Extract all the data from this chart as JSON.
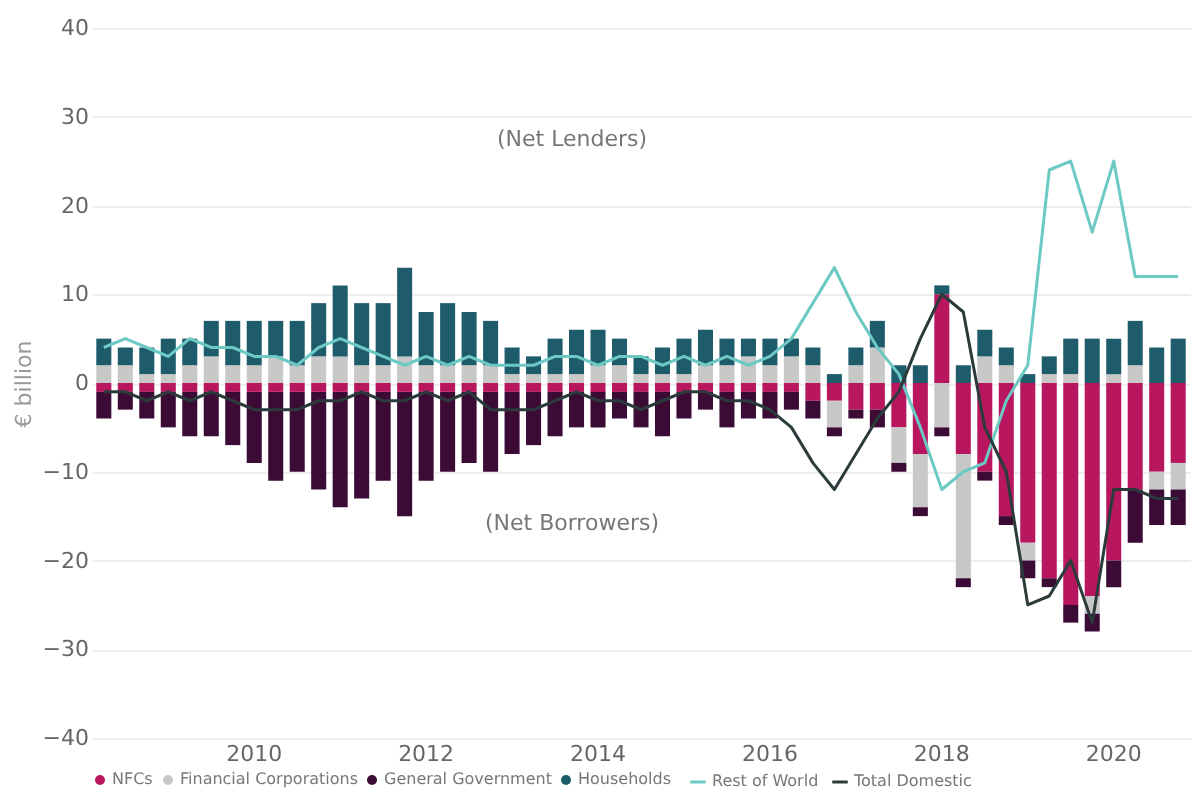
{
  "chart_data": {
    "type": "bar",
    "stacked": true,
    "ylabel": "€ billion",
    "categories": [
      null,
      null,
      null,
      null,
      null,
      null,
      null,
      "2010",
      null,
      null,
      null,
      null,
      null,
      null,
      null,
      "2012",
      null,
      null,
      null,
      null,
      null,
      null,
      null,
      "2014",
      null,
      null,
      null,
      null,
      null,
      null,
      null,
      "2016",
      null,
      null,
      null,
      null,
      null,
      null,
      null,
      "2018",
      null,
      null,
      null,
      null,
      null,
      null,
      null,
      "2020",
      null,
      null,
      null
    ],
    "series": [
      {
        "name": "NFCs",
        "color": "#b8175f",
        "values": [
          -1,
          -1,
          -1,
          -1,
          -1,
          -1,
          -1,
          -1,
          -1,
          -1,
          -1,
          -1,
          -1,
          -1,
          -1,
          -1,
          -1,
          -1,
          -1,
          -1,
          -1,
          -1,
          -1,
          -1,
          -1,
          -1,
          -1,
          -1,
          -1,
          -1,
          -1,
          -1,
          -1,
          -2,
          -2,
          -3,
          -3,
          -5,
          -8,
          10,
          -8,
          -10,
          -15,
          -18,
          -22,
          -25,
          -24,
          -20,
          -12,
          -10,
          -9
        ]
      },
      {
        "name": "Financial Corporations",
        "color": "#c8c8c8",
        "values": [
          2,
          2,
          1,
          1,
          2,
          3,
          2,
          2,
          3,
          2,
          3,
          3,
          2,
          2,
          3,
          2,
          2,
          2,
          2,
          1,
          1,
          1,
          1,
          2,
          2,
          1,
          1,
          1,
          2,
          2,
          3,
          2,
          3,
          2,
          -3,
          2,
          4,
          -4,
          -6,
          -5,
          -14,
          3,
          2,
          -2,
          1,
          1,
          -2,
          1,
          2,
          -2,
          -3
        ]
      },
      {
        "name": "General Government",
        "color": "#3b0a35",
        "values": [
          -3,
          -2,
          -3,
          -4,
          -5,
          -5,
          -6,
          -8,
          -10,
          -9,
          -11,
          -13,
          -12,
          -10,
          -14,
          -10,
          -9,
          -8,
          -9,
          -7,
          -6,
          -5,
          -4,
          -4,
          -3,
          -4,
          -5,
          -3,
          -2,
          -4,
          -3,
          -3,
          -2,
          -2,
          -1,
          -1,
          -2,
          -1,
          -1,
          -1,
          -1,
          -1,
          -1,
          -2,
          -1,
          -2,
          -2,
          -3,
          -6,
          -4,
          -4
        ]
      },
      {
        "name": "Households",
        "color": "#1f5c6b",
        "values": [
          3,
          2,
          3,
          4,
          3,
          4,
          5,
          5,
          4,
          5,
          6,
          8,
          7,
          7,
          10,
          6,
          7,
          6,
          5,
          3,
          2,
          4,
          5,
          4,
          3,
          2,
          3,
          4,
          4,
          3,
          2,
          3,
          2,
          2,
          1,
          2,
          3,
          2,
          2,
          1,
          2,
          3,
          2,
          1,
          2,
          4,
          5,
          4,
          5,
          4,
          5
        ]
      },
      {
        "name": "Rest of World",
        "color": "#6cc9c4",
        "type": "line",
        "values": [
          4,
          5,
          4,
          3,
          5,
          4,
          4,
          3,
          3,
          2,
          4,
          5,
          4,
          3,
          2,
          3,
          2,
          3,
          2,
          2,
          2,
          3,
          3,
          2,
          3,
          3,
          2,
          3,
          2,
          3,
          2,
          3,
          5,
          9,
          13,
          8,
          4,
          1,
          -5,
          -12,
          -10,
          -9,
          -2,
          2,
          24,
          25,
          17,
          25,
          12,
          12,
          12
        ]
      },
      {
        "name": "Total Domestic",
        "color": "#2b3b3b",
        "type": "line",
        "values": [
          -1,
          -1,
          -2,
          -1,
          -2,
          -1,
          -2,
          -3,
          -3,
          -3,
          -2,
          -2,
          -1,
          -2,
          -2,
          -1,
          -2,
          -1,
          -3,
          -3,
          -3,
          -2,
          -1,
          -2,
          -2,
          -3,
          -2,
          -1,
          -1,
          -2,
          -2,
          -3,
          -5,
          -9,
          -12,
          -8,
          -4,
          -1,
          5,
          10,
          8,
          -5,
          -10,
          -25,
          -24,
          -20,
          -27,
          -12,
          -12,
          -13,
          -13
        ]
      }
    ],
    "ylim": [
      -40,
      40
    ],
    "yticks": [
      -40,
      -30,
      -20,
      -10,
      0,
      10,
      20,
      30,
      40
    ],
    "grid": "y",
    "legend": "bottom",
    "annotations": [
      "(Net Lenders)",
      "(Net Borrowers)"
    ]
  }
}
